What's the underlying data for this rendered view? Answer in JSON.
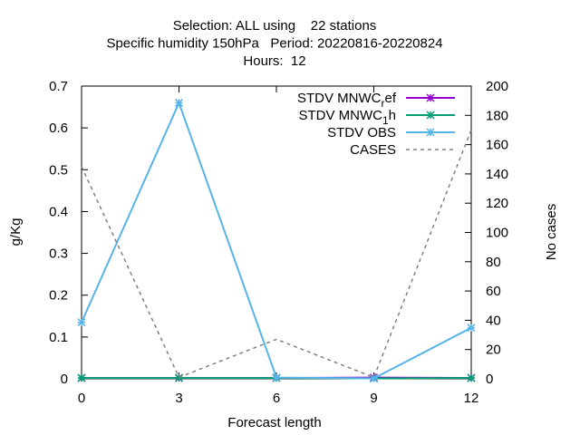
{
  "chart_data": {
    "type": "line",
    "title_lines": [
      "Selection: ALL using    22 stations",
      "Specific humidity 150hPa   Period: 20220816-20220824",
      "Hours:  12"
    ],
    "xlabel": "Forecast length",
    "ylabel": "g/Kg",
    "y2label": "No cases",
    "x": [
      0,
      3,
      6,
      9,
      12
    ],
    "x_ticks": [
      "0",
      "3",
      "6",
      "9",
      "12"
    ],
    "xlim": [
      0,
      12
    ],
    "ylim": [
      0,
      0.7
    ],
    "y_ticks": [
      "0",
      "0.1",
      "0.2",
      "0.3",
      "0.4",
      "0.5",
      "0.6",
      "0.7"
    ],
    "y2lim": [
      0,
      200
    ],
    "y2_ticks": [
      "0",
      "20",
      "40",
      "60",
      "80",
      "100",
      "120",
      "140",
      "160",
      "180",
      "200"
    ],
    "legend_position": "top-right",
    "grid": false,
    "series": [
      {
        "name": "STDV MNWC_ref",
        "label_main": "STDV MNWC",
        "label_sub": "r",
        "label_rest": "ef",
        "axis": "y",
        "color": "#9400d3",
        "marker": "x-star",
        "dash": false,
        "values": [
          0.002,
          0.002,
          0.002,
          0.003,
          0.002
        ]
      },
      {
        "name": "STDV MNWC_1h",
        "label_main": "STDV MNWC",
        "label_sub": "1",
        "label_rest": "h",
        "axis": "y",
        "color": "#009e73",
        "marker": "x-star",
        "dash": false,
        "values": [
          0.002,
          0.002,
          0.002,
          0.001,
          0.002
        ]
      },
      {
        "name": "STDV OBS",
        "label_main": "STDV OBS",
        "label_sub": "",
        "label_rest": "",
        "axis": "y",
        "color": "#56b4e9",
        "marker": "x-star",
        "dash": false,
        "values": [
          0.135,
          0.66,
          0.003,
          0.001,
          0.122
        ]
      },
      {
        "name": "CASES",
        "label_main": "CASES",
        "label_sub": "",
        "label_rest": "",
        "axis": "y2",
        "color": "#808080",
        "marker": "none",
        "dash": true,
        "values": [
          145,
          1,
          27,
          1,
          170
        ]
      }
    ]
  }
}
